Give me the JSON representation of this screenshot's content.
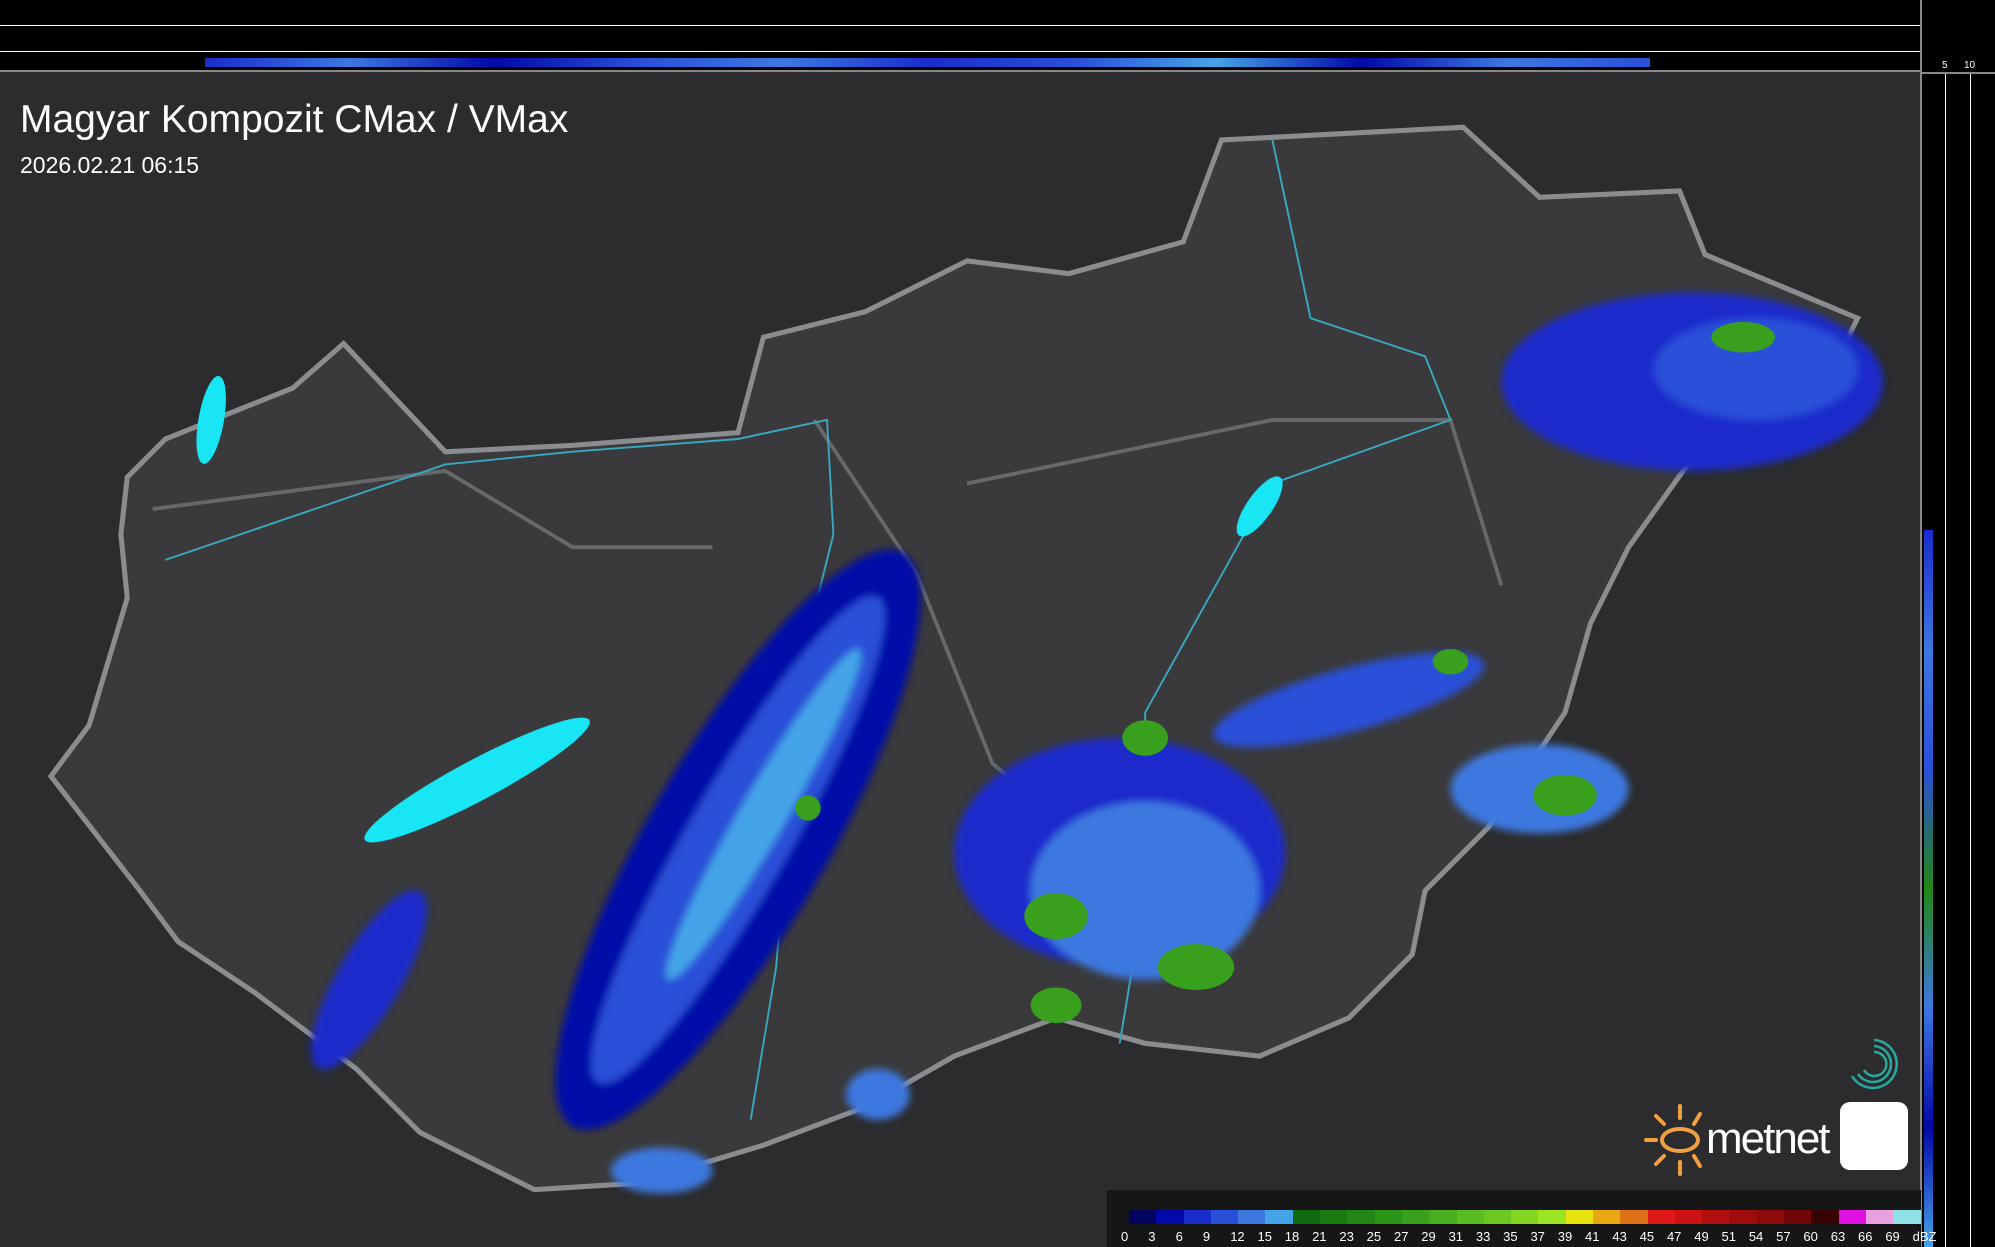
{
  "header": {
    "title": "Magyar Kompozit CMax / VMax",
    "datetime": "2026.02.21 06:15"
  },
  "profile_axes": {
    "top_ticks": [
      "10",
      "5"
    ],
    "right_ticks": [
      "5",
      "10"
    ]
  },
  "legend": {
    "unit": "dBZ",
    "labels": [
      "0",
      "3",
      "6",
      "9",
      "12",
      "15",
      "18",
      "21",
      "23",
      "25",
      "27",
      "29",
      "31",
      "33",
      "35",
      "37",
      "39",
      "41",
      "43",
      "45",
      "47",
      "49",
      "51",
      "54",
      "57",
      "60",
      "63",
      "66",
      "69"
    ],
    "colors": [
      "#02045e",
      "#0308a8",
      "#1a2ccc",
      "#2a4fd8",
      "#3c78e0",
      "#44a4e8",
      "#116a10",
      "#1a7a12",
      "#228714",
      "#2c9418",
      "#38a01c",
      "#47ae1e",
      "#5abc20",
      "#6cc820",
      "#82d622",
      "#9ae424",
      "#e8e40e",
      "#e8a812",
      "#e07018",
      "#e01818",
      "#cc1212",
      "#b20e0e",
      "#a00c0c",
      "#8c0a0a",
      "#700606",
      "#380202",
      "#e010e0",
      "#e8a0e0",
      "#90e0e8"
    ]
  },
  "branding": {
    "logo_text": "metnet",
    "colors": {
      "sun": "#f0a040",
      "app_icon": "#2aa8a0"
    }
  },
  "map": {
    "colors": {
      "lakes": "#18e6f4",
      "border": "#8a8c90",
      "rivers": "#3aa8c0",
      "towns": "#ffffff"
    }
  }
}
